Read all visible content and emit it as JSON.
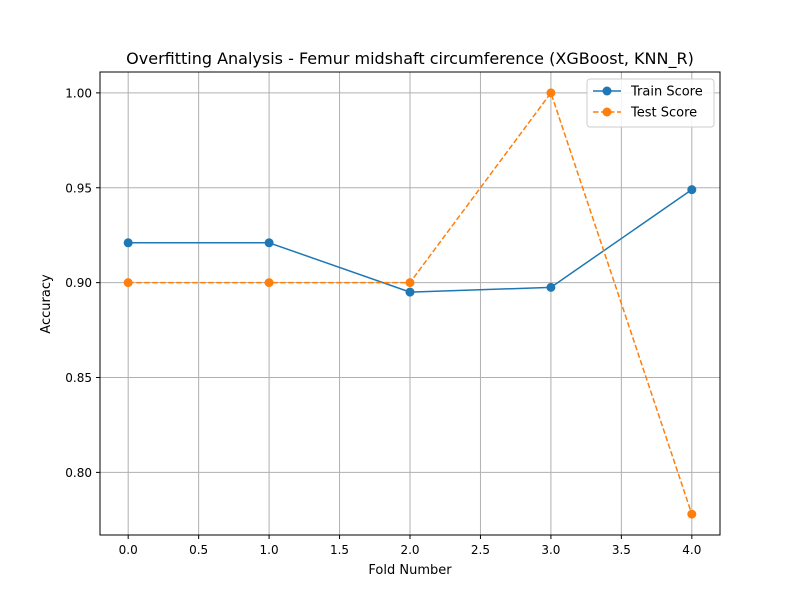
{
  "chart_data": {
    "type": "line",
    "title": "Overfitting Analysis - Femur midshaft circumference (XGBoost, KNN_R)",
    "xlabel": "Fold Number",
    "ylabel": "Accuracy",
    "xlim": [
      -0.2,
      4.2
    ],
    "ylim": [
      0.767,
      1.011
    ],
    "xticks": [
      0.0,
      0.5,
      1.0,
      1.5,
      2.0,
      2.5,
      3.0,
      3.5,
      4.0
    ],
    "xtick_labels": [
      "0.0",
      "0.5",
      "1.0",
      "1.5",
      "2.0",
      "2.5",
      "3.0",
      "3.5",
      "4.0"
    ],
    "yticks": [
      0.8,
      0.85,
      0.9,
      0.95,
      1.0
    ],
    "ytick_labels": [
      "0.80",
      "0.85",
      "0.90",
      "0.95",
      "1.00"
    ],
    "grid": true,
    "legend_position": "top-right",
    "x": [
      0,
      1,
      2,
      3,
      4
    ],
    "series": [
      {
        "name": "Train Score",
        "values": [
          0.921,
          0.921,
          0.895,
          0.8975,
          0.949
        ],
        "color": "#1f77b4",
        "linestyle": "solid",
        "marker": "circle"
      },
      {
        "name": "Test Score",
        "values": [
          0.9,
          0.9,
          0.9,
          1.0,
          0.778
        ],
        "color": "#ff7f0e",
        "linestyle": "dashed",
        "marker": "circle"
      }
    ]
  }
}
